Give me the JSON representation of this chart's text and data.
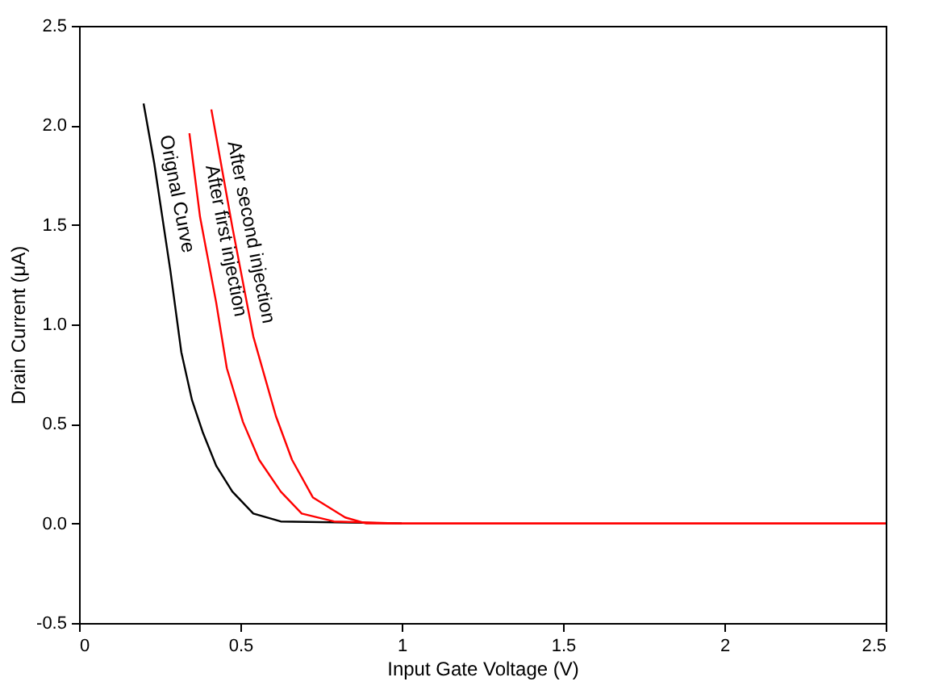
{
  "chart_data": {
    "type": "line",
    "xlabel": "Input Gate Voltage (V)",
    "ylabel": "Drain Current (μA)",
    "xlim": [
      0,
      2.5
    ],
    "ylim": [
      -0.5,
      2.5
    ],
    "xticks": [
      0,
      0.5,
      1,
      1.5,
      2,
      2.5
    ],
    "yticks": [
      {
        "value": -0.5,
        "label": "-0.5"
      },
      {
        "value": 0,
        "label": "0.0"
      },
      {
        "value": 0.5,
        "label": "0.5"
      },
      {
        "value": 1,
        "label": "1.0"
      },
      {
        "value": 1.5,
        "label": "1.5"
      },
      {
        "value": 2,
        "label": "2.0"
      },
      {
        "value": 2.5,
        "label": "2.5"
      }
    ],
    "grid": false,
    "legend": false,
    "marker": "none",
    "line_style": "solid",
    "series": [
      {
        "color": "#000000",
        "x": [
          0.2,
          0.233,
          0.283,
          0.317,
          0.35,
          0.383,
          0.425,
          0.475,
          0.54,
          0.625,
          1.0
        ],
        "values": [
          2.11,
          1.81,
          1.27,
          0.86,
          0.62,
          0.46,
          0.29,
          0.16,
          0.05,
          0.01,
          0
        ]
      },
      {
        "color": "#ff0000",
        "x": [
          0.342,
          0.375,
          0.425,
          0.458,
          0.508,
          0.558,
          0.625,
          0.69,
          0.79,
          1.0,
          1.5,
          2.0,
          2.5
        ],
        "values": [
          1.96,
          1.54,
          1.11,
          0.78,
          0.51,
          0.32,
          0.16,
          0.05,
          0.01,
          0,
          0,
          0,
          0
        ]
      },
      {
        "color": "#ff0000",
        "x": [
          0.41,
          0.475,
          0.54,
          0.61,
          0.66,
          0.725,
          0.825,
          0.89,
          1.0,
          1.5,
          2.0,
          2.5
        ],
        "values": [
          2.08,
          1.49,
          0.94,
          0.54,
          0.32,
          0.13,
          0.03,
          0,
          0,
          0,
          0,
          0
        ]
      }
    ],
    "annotations": [
      "Orignal Curve",
      "After first injection",
      "After second injection"
    ]
  }
}
